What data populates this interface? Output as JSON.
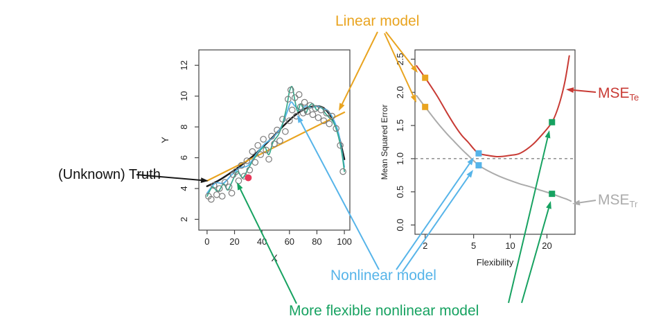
{
  "palette": {
    "orange": "#E9A420",
    "blue": "#56B4E9",
    "green": "#17A261",
    "teal": "#36A98C",
    "red": "#C83A34",
    "grey": "#ABABAB",
    "black": "#1A1A1A",
    "scatter": "#7A7A7A",
    "red_point": "#E8385A",
    "box": "#444444",
    "dash": "#555555"
  },
  "annotations": {
    "linear_model": "Linear model",
    "truth": "(Unknown) Truth",
    "nonlinear": "Nonlinear model",
    "flexible": "More flexible nonlinear model",
    "mse_te": {
      "main": "MSE",
      "sub": "Te"
    },
    "mse_tr": {
      "main": "MSE",
      "sub": "Tr"
    },
    "arrows": [
      {
        "color": "orange",
        "from": [
          545,
          46
        ],
        "to": [
          489,
          160
        ]
      },
      {
        "color": "orange",
        "from": [
          557,
          46
        ],
        "to": [
          603,
          105
        ]
      },
      {
        "color": "orange",
        "from": [
          555,
          48
        ],
        "to": [
          601,
          148
        ]
      },
      {
        "color": "black",
        "from": [
          197,
          252
        ],
        "to": [
          301,
          261
        ]
      },
      {
        "color": "blue",
        "from": [
          547,
          389
        ],
        "to": [
          429,
          166
        ]
      },
      {
        "color": "blue",
        "from": [
          572,
          389
        ],
        "to": [
          684,
          227
        ]
      },
      {
        "color": "blue",
        "from": [
          581,
          392
        ],
        "to": [
          683,
          245
        ]
      },
      {
        "color": "green",
        "from": [
          428,
          438
        ],
        "to": [
          342,
          263
        ]
      },
      {
        "color": "green",
        "from": [
          734,
          437
        ],
        "to": [
          793,
          188
        ]
      },
      {
        "color": "green",
        "from": [
          753,
          437
        ],
        "to": [
          795,
          290
        ]
      },
      {
        "color": "red",
        "from": [
          860,
          133
        ],
        "to": [
          817,
          129
        ]
      },
      {
        "color": "grey",
        "from": [
          860,
          289
        ],
        "to": [
          826,
          294
        ]
      }
    ]
  },
  "chart_data": [
    {
      "type": "scatter",
      "title": "",
      "xlabel": "X",
      "ylabel": "Y",
      "xlim": [
        -6,
        104
      ],
      "ylim": [
        1.3,
        13.0
      ],
      "xticks": [
        0,
        20,
        40,
        60,
        80,
        100
      ],
      "yticks": [
        2,
        4,
        6,
        8,
        10,
        12
      ],
      "ytick_decimals": 0,
      "scatter": [
        [
          1,
          3.5
        ],
        [
          3,
          3.3
        ],
        [
          5,
          4.2
        ],
        [
          7,
          3.6
        ],
        [
          9,
          4.0
        ],
        [
          11,
          3.5
        ],
        [
          13,
          4.4
        ],
        [
          16,
          4.1
        ],
        [
          18,
          3.7
        ],
        [
          19,
          4.9
        ],
        [
          21,
          5.1
        ],
        [
          23,
          4.5
        ],
        [
          25,
          5.5
        ],
        [
          27,
          4.8
        ],
        [
          29,
          5.8
        ],
        [
          31,
          5.2
        ],
        [
          33,
          6.4
        ],
        [
          35,
          5.7
        ],
        [
          37,
          6.8
        ],
        [
          39,
          6.2
        ],
        [
          41,
          7.2
        ],
        [
          43,
          6.5
        ],
        [
          45,
          5.9
        ],
        [
          47,
          7.4
        ],
        [
          49,
          6.9
        ],
        [
          51,
          7.8
        ],
        [
          53,
          7.1
        ],
        [
          55,
          8.5
        ],
        [
          57,
          7.7
        ],
        [
          59,
          9.8
        ],
        [
          60,
          8.4
        ],
        [
          61,
          10.4
        ],
        [
          62,
          9.1
        ],
        [
          64,
          9.9
        ],
        [
          65,
          8.7
        ],
        [
          67,
          10.1
        ],
        [
          68,
          9.3
        ],
        [
          70,
          8.9
        ],
        [
          71,
          9.6
        ],
        [
          73,
          9.0
        ],
        [
          75,
          9.4
        ],
        [
          77,
          8.8
        ],
        [
          79,
          9.2
        ],
        [
          81,
          8.6
        ],
        [
          83,
          9.1
        ],
        [
          85,
          8.4
        ],
        [
          87,
          8.9
        ],
        [
          89,
          8.2
        ],
        [
          91,
          8.7
        ],
        [
          94,
          7.9
        ],
        [
          97,
          6.8
        ],
        [
          99,
          5.1
        ]
      ],
      "red_point": [
        30,
        4.7
      ],
      "series": [
        {
          "name": "truth",
          "color_key": "black",
          "width": 2.5,
          "points": [
            [
              0,
              4.15
            ],
            [
              8,
              4.5
            ],
            [
              16,
              4.95
            ],
            [
              24,
              5.45
            ],
            [
              32,
              6.0
            ],
            [
              40,
              6.65
            ],
            [
              48,
              7.35
            ],
            [
              56,
              8.1
            ],
            [
              64,
              8.75
            ],
            [
              72,
              9.2
            ],
            [
              80,
              9.35
            ],
            [
              86,
              9.15
            ],
            [
              92,
              8.4
            ],
            [
              96,
              7.4
            ],
            [
              100,
              5.9
            ]
          ]
        },
        {
          "name": "linear",
          "color_key": "orange",
          "width": 2.2,
          "points": [
            [
              0,
              4.5
            ],
            [
              100,
              8.95
            ]
          ]
        },
        {
          "name": "nonlinear",
          "color_key": "blue",
          "width": 1.9,
          "points": [
            [
              0,
              3.7
            ],
            [
              6,
              4.35
            ],
            [
              12,
              4.35
            ],
            [
              18,
              4.9
            ],
            [
              24,
              5.35
            ],
            [
              30,
              5.5
            ],
            [
              36,
              6.25
            ],
            [
              42,
              6.9
            ],
            [
              48,
              7.3
            ],
            [
              54,
              8.0
            ],
            [
              58,
              8.9
            ],
            [
              61,
              9.6
            ],
            [
              64,
              9.35
            ],
            [
              68,
              9.1
            ],
            [
              72,
              9.35
            ],
            [
              76,
              9.25
            ],
            [
              80,
              9.35
            ],
            [
              84,
              9.2
            ],
            [
              88,
              9.05
            ],
            [
              92,
              8.5
            ],
            [
              96,
              7.5
            ],
            [
              100,
              5.4
            ]
          ]
        },
        {
          "name": "flexible",
          "color_key": "teal",
          "width": 1.7,
          "points": [
            [
              0,
              3.5
            ],
            [
              4,
              4.1
            ],
            [
              8,
              3.8
            ],
            [
              12,
              4.3
            ],
            [
              15,
              3.9
            ],
            [
              18,
              4.4
            ],
            [
              22,
              5.1
            ],
            [
              26,
              4.7
            ],
            [
              30,
              5.3
            ],
            [
              34,
              5.9
            ],
            [
              38,
              6.4
            ],
            [
              42,
              6.7
            ],
            [
              45,
              6.2
            ],
            [
              48,
              7.0
            ],
            [
              52,
              7.5
            ],
            [
              55,
              8.2
            ],
            [
              58,
              9.3
            ],
            [
              60,
              10.3
            ],
            [
              62,
              10.6
            ],
            [
              64,
              9.7
            ],
            [
              66,
              9.0
            ],
            [
              68,
              9.5
            ],
            [
              70,
              9.2
            ],
            [
              72,
              8.9
            ],
            [
              74,
              9.3
            ],
            [
              77,
              9.5
            ],
            [
              80,
              9.1
            ],
            [
              83,
              9.3
            ],
            [
              86,
              8.9
            ],
            [
              89,
              8.6
            ],
            [
              92,
              8.3
            ],
            [
              95,
              7.6
            ],
            [
              98,
              6.4
            ],
            [
              100,
              5.1
            ]
          ]
        }
      ]
    },
    {
      "type": "line",
      "title": "",
      "xlabel": "Flexibility",
      "ylabel": "Mean Squared Error",
      "xscale": "log",
      "xlim": [
        1.65,
        34
      ],
      "ylim": [
        -0.14,
        2.64
      ],
      "xticks": [
        2,
        5,
        10,
        20
      ],
      "yticks": [
        0.0,
        0.5,
        1.0,
        1.5,
        2.0,
        2.5
      ],
      "ytick_decimals": 1,
      "dashed_y": 1.0,
      "series": [
        {
          "name": "test_mse",
          "color_key": "red",
          "width": 2,
          "points": [
            [
              1.7,
              2.4
            ],
            [
              2,
              2.22
            ],
            [
              2.5,
              1.95
            ],
            [
              3,
              1.7
            ],
            [
              3.5,
              1.5
            ],
            [
              4,
              1.35
            ],
            [
              4.5,
              1.25
            ],
            [
              5,
              1.15
            ],
            [
              5.5,
              1.08
            ],
            [
              6.5,
              1.05
            ],
            [
              8,
              1.03
            ],
            [
              10,
              1.05
            ],
            [
              12,
              1.08
            ],
            [
              15,
              1.2
            ],
            [
              18,
              1.35
            ],
            [
              22,
              1.55
            ],
            [
              25,
              1.8
            ],
            [
              28,
              2.15
            ],
            [
              30.5,
              2.55
            ]
          ]
        },
        {
          "name": "train_mse",
          "color_key": "grey",
          "width": 2,
          "points": [
            [
              1.7,
              1.95
            ],
            [
              2,
              1.78
            ],
            [
              2.5,
              1.55
            ],
            [
              3,
              1.38
            ],
            [
              3.5,
              1.25
            ],
            [
              4,
              1.14
            ],
            [
              4.5,
              1.05
            ],
            [
              5,
              0.97
            ],
            [
              5.5,
              0.9
            ],
            [
              6.5,
              0.82
            ],
            [
              8,
              0.74
            ],
            [
              10,
              0.67
            ],
            [
              12,
              0.62
            ],
            [
              15,
              0.57
            ],
            [
              18,
              0.52
            ],
            [
              22,
              0.47
            ],
            [
              26,
              0.42
            ],
            [
              29,
              0.39
            ],
            [
              31.5,
              0.36
            ]
          ]
        }
      ],
      "markers": [
        {
          "color_key": "orange",
          "x": 2,
          "y": 2.22
        },
        {
          "color_key": "orange",
          "x": 2,
          "y": 1.78
        },
        {
          "color_key": "blue",
          "x": 5.5,
          "y": 1.08
        },
        {
          "color_key": "blue",
          "x": 5.5,
          "y": 0.9
        },
        {
          "color_key": "green",
          "x": 22,
          "y": 1.55
        },
        {
          "color_key": "green",
          "x": 22,
          "y": 0.47
        }
      ]
    }
  ]
}
